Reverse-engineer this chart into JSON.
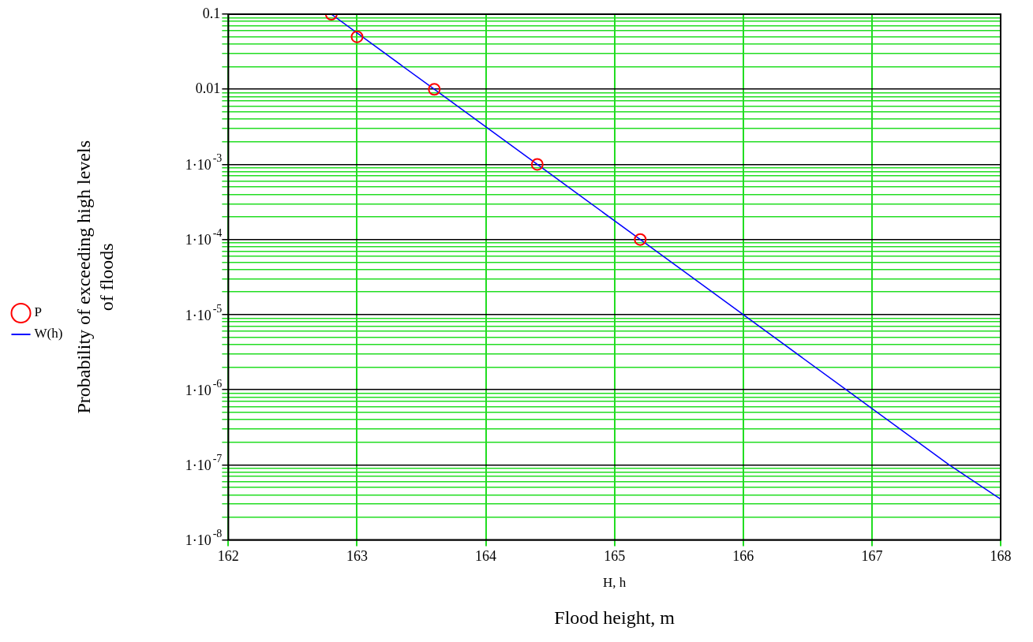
{
  "chart_data": {
    "type": "line",
    "xlabel": "Flood height, m",
    "ylabel": "Probability of exceeding high levels of floods",
    "annotations": [
      "H, h"
    ],
    "xlim": [
      162,
      168
    ],
    "xticks": [
      162,
      163,
      164,
      165,
      166,
      167,
      168
    ],
    "ylim": [
      1e-08,
      0.1
    ],
    "yticks": [
      {
        "value": 1e-08,
        "label": "1·10$^{-8}$"
      },
      {
        "value": 1e-07,
        "label": "1·10$^{-7}$"
      },
      {
        "value": 1e-06,
        "label": "1·10$^{-6}$"
      },
      {
        "value": 1e-05,
        "label": "1·10$^{-5}$"
      },
      {
        "value": 0.0001,
        "label": "1·10$^{-4}$"
      },
      {
        "value": 0.001,
        "label": "1·10$^{-3}$"
      },
      0.01,
      0.1,
      {
        "value": 2e-08,
        "label": null
      },
      {
        "value": 3e-08,
        "label": null
      },
      {
        "value": 4e-08,
        "label": null
      },
      {
        "value": 5e-08,
        "label": null
      },
      {
        "value": 6e-08,
        "label": null
      },
      {
        "value": 7e-08,
        "label": null
      },
      {
        "value": 8e-08,
        "label": null
      },
      {
        "value": 9e-08,
        "label": null
      },
      {
        "value": 2e-07,
        "label": null
      },
      {
        "value": 3e-07,
        "label": null
      },
      {
        "value": 4e-07,
        "label": null
      },
      {
        "value": 5e-07,
        "label": null
      },
      {
        "value": 6e-07,
        "label": null
      },
      {
        "value": 7e-07,
        "label": null
      },
      {
        "value": 8e-07,
        "label": null
      },
      {
        "value": 9e-07,
        "label": null
      },
      {
        "value": 2e-06,
        "label": null
      },
      {
        "value": 3e-06,
        "label": null
      },
      {
        "value": 4e-06,
        "label": null
      },
      {
        "value": 5e-06,
        "label": null
      },
      {
        "value": 6e-06,
        "label": null
      },
      {
        "value": 7e-06,
        "label": null
      },
      {
        "value": 8e-06,
        "label": null
      },
      {
        "value": 9e-06,
        "label": null
      },
      {
        "value": 2e-05,
        "label": null
      },
      {
        "value": 3e-05,
        "label": null
      },
      {
        "value": 4e-05,
        "label": null
      },
      {
        "value": 5e-05,
        "label": null
      },
      {
        "value": 6e-05,
        "label": null
      },
      {
        "value": 7e-05,
        "label": null
      },
      {
        "value": 8e-05,
        "label": null
      },
      {
        "value": 9e-05,
        "label": null
      },
      {
        "value": 0.0002,
        "label": null
      },
      {
        "value": 0.0003,
        "label": null
      },
      {
        "value": 0.0004,
        "label": null
      },
      {
        "value": 0.0005,
        "label": null
      },
      {
        "value": 0.0006,
        "label": null
      },
      {
        "value": 0.0007,
        "label": null
      },
      {
        "value": 0.0008,
        "label": null
      },
      {
        "value": 0.0009,
        "label": null
      },
      {
        "value": 0.002,
        "label": null
      },
      {
        "value": 0.003,
        "label": null
      },
      {
        "value": 0.004,
        "label": null
      },
      {
        "value": 0.005,
        "label": null
      },
      {
        "value": 0.006,
        "label": null
      },
      {
        "value": 0.007,
        "label": null
      },
      {
        "value": 0.008,
        "label": null
      },
      {
        "value": 0.009,
        "label": null
      },
      {
        "value": 0.02,
        "label": null
      },
      {
        "value": 0.03,
        "label": null
      },
      {
        "value": 0.04,
        "label": null
      },
      {
        "value": 0.05,
        "label": null
      },
      {
        "value": 0.06,
        "label": null
      },
      {
        "value": 0.07,
        "label": null
      },
      {
        "value": 0.08,
        "label": null
      },
      {
        "value": 0.09,
        "label": null
      }
    ],
    "log": "y",
    "grid": true,
    "legend": "left",
    "series": [
      {
        "name": "P",
        "type": "scatter",
        "marker": "circle",
        "color": "#ff0000",
        "x": [
          162.8,
          163,
          163.6,
          164.4,
          165.2
        ],
        "values": [
          0.1,
          0.05,
          0.01,
          0.001,
          0.0001
        ]
      },
      {
        "name": "W(h)",
        "type": "line",
        "marker": "none",
        "line_style": "solid",
        "color": "#0000ff",
        "x": [
          162.8,
          163.6,
          164.4,
          165.2,
          166,
          166.8,
          167.6,
          168
        ],
        "values": [
          0.1,
          0.01,
          0.001,
          0.0001,
          1e-05,
          1e-06,
          1e-07,
          3.5e-08
        ]
      }
    ]
  }
}
